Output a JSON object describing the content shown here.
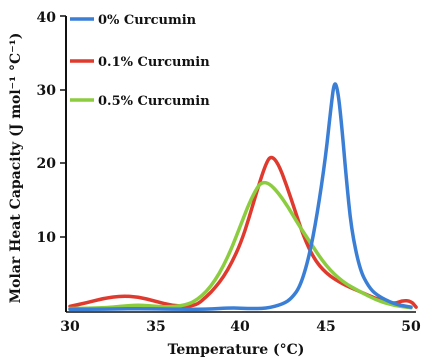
{
  "chart_data": {
    "type": "line",
    "xlabel": "Temperature (°C)",
    "ylabel": "Molar Heat Capacity (J mol⁻¹ °C⁻¹)",
    "xlim": [
      30,
      50
    ],
    "ylim": [
      0,
      40
    ],
    "x_ticks": [
      "30",
      "35",
      "40",
      "45",
      "50"
    ],
    "y_ticks": [
      "10",
      "20",
      "30",
      "40"
    ],
    "grid": false,
    "legend_position": "top-left",
    "series": [
      {
        "name": "0% Curcumin",
        "color": "#3a7fd5",
        "points": [
          [
            30,
            0.1
          ],
          [
            32,
            0.1
          ],
          [
            34,
            0.2
          ],
          [
            36,
            0.1
          ],
          [
            38,
            0.1
          ],
          [
            39.5,
            0.3
          ],
          [
            40.5,
            0.2
          ],
          [
            41.5,
            0.2
          ],
          [
            42.5,
            0.8
          ],
          [
            43,
            1.6
          ],
          [
            43.5,
            3.2
          ],
          [
            44,
            7
          ],
          [
            44.5,
            13
          ],
          [
            45,
            21
          ],
          [
            45.3,
            27.5
          ],
          [
            45.5,
            31.2
          ],
          [
            45.7,
            30
          ],
          [
            45.9,
            26
          ],
          [
            46.2,
            18
          ],
          [
            46.5,
            11
          ],
          [
            47,
            5.5
          ],
          [
            47.5,
            3.2
          ],
          [
            48,
            2
          ],
          [
            49,
            0.8
          ],
          [
            50,
            0.4
          ]
        ]
      },
      {
        "name": "0.1% Curcumin",
        "color": "#e03a2e",
        "points": [
          [
            30,
            0.5
          ],
          [
            31,
            1
          ],
          [
            32,
            1.6
          ],
          [
            33,
            1.9
          ],
          [
            34,
            1.8
          ],
          [
            35,
            1.2
          ],
          [
            36,
            0.6
          ],
          [
            37,
            0.5
          ],
          [
            37.5,
            0.8
          ],
          [
            38,
            1.8
          ],
          [
            38.5,
            3
          ],
          [
            39,
            4.5
          ],
          [
            39.5,
            6.5
          ],
          [
            40,
            9
          ],
          [
            40.5,
            12.5
          ],
          [
            41,
            16.5
          ],
          [
            41.5,
            20
          ],
          [
            41.8,
            21
          ],
          [
            42.2,
            20
          ],
          [
            42.7,
            17
          ],
          [
            43.2,
            13.5
          ],
          [
            43.7,
            10
          ],
          [
            44.3,
            7
          ],
          [
            45,
            5
          ],
          [
            46,
            3.5
          ],
          [
            47,
            2.5
          ],
          [
            48,
            1.5
          ],
          [
            49,
            0.8
          ],
          [
            49.5,
            1.3
          ],
          [
            50,
            1.2
          ],
          [
            50.3,
            0.4
          ]
        ]
      },
      {
        "name": "0.5% Curcumin",
        "color": "#8ccc3f",
        "points": [
          [
            30,
            0.2
          ],
          [
            32,
            0.3
          ],
          [
            33,
            0.5
          ],
          [
            34,
            0.7
          ],
          [
            35,
            0.5
          ],
          [
            36,
            0.4
          ],
          [
            37,
            0.8
          ],
          [
            37.5,
            1.5
          ],
          [
            38,
            2.5
          ],
          [
            38.5,
            4
          ],
          [
            39,
            6
          ],
          [
            39.5,
            8.5
          ],
          [
            40,
            11.5
          ],
          [
            40.5,
            14.5
          ],
          [
            41,
            16.8
          ],
          [
            41.3,
            17.4
          ],
          [
            41.7,
            17.2
          ],
          [
            42.2,
            16
          ],
          [
            42.8,
            14
          ],
          [
            43.3,
            12
          ],
          [
            44,
            9.5
          ],
          [
            45,
            6
          ],
          [
            46,
            3.8
          ],
          [
            47,
            2.5
          ],
          [
            48,
            1.3
          ],
          [
            49,
            0.6
          ],
          [
            50,
            0.3
          ]
        ]
      }
    ]
  }
}
